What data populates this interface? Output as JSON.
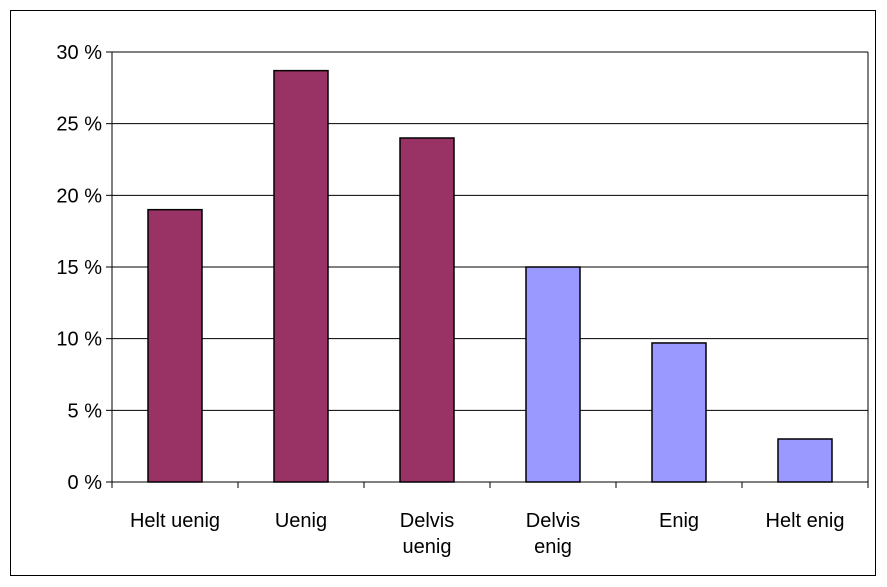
{
  "chart_data": {
    "type": "bar",
    "categories": [
      [
        "Helt uenig"
      ],
      [
        "Uenig"
      ],
      [
        "Delvis",
        "uenig"
      ],
      [
        "Delvis",
        "enig"
      ],
      [
        "Enig"
      ],
      [
        "Helt enig"
      ]
    ],
    "values": [
      19,
      28.7,
      24,
      15,
      9.7,
      3
    ],
    "bar_colors": [
      "#993366",
      "#993366",
      "#993366",
      "#9999FF",
      "#9999FF",
      "#9999FF"
    ],
    "y_ticks": [
      0,
      5,
      10,
      15,
      20,
      25,
      30
    ],
    "y_tick_suffix": " %",
    "ylim": [
      0,
      30
    ],
    "grid": true,
    "title": "",
    "xlabel": "",
    "ylabel": ""
  }
}
